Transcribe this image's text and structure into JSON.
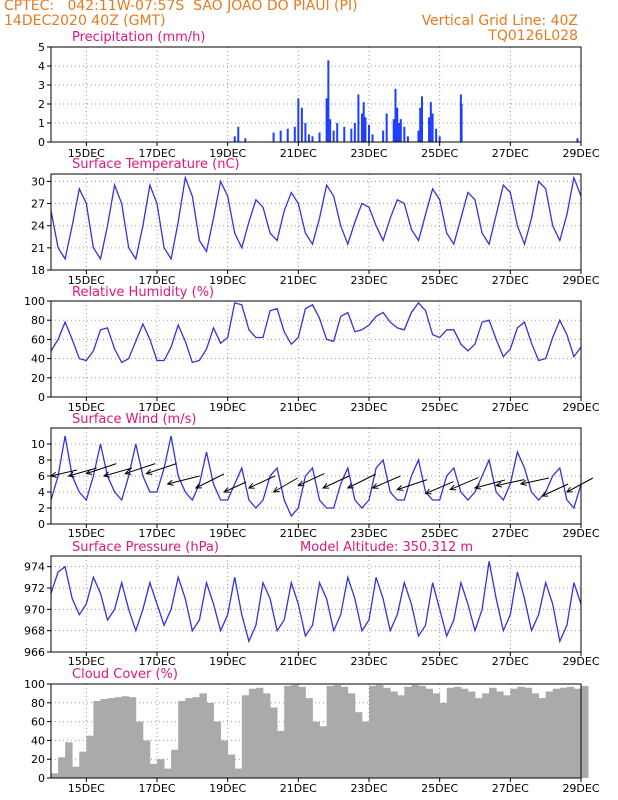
{
  "header": {
    "line1": "CPTEC:   042:11W-07:57S  SAO JOAO DO PIAUI (PI)",
    "line2_left": "14DEC2020 40Z (GMT)",
    "line2_right": "Vertical Grid Line: 40Z",
    "line3_right": "TQ0126L028"
  },
  "colors": {
    "header": "#e87a1e",
    "title": "#e0157f",
    "series": "#3333dd",
    "bars_precip": "#1f3fff",
    "bars_cloud": "#aaaaaa",
    "wind_arrow": "#000000"
  },
  "x_ticks": [
    "15DEC",
    "17DEC",
    "19DEC",
    "21DEC",
    "23DEC",
    "25DEC",
    "27DEC",
    "29DEC"
  ],
  "chart_data": [
    {
      "id": "precip",
      "type": "bar",
      "title": "Precipitation (mm/h)",
      "x_range_days": [
        14.0,
        29.0
      ],
      "ylim": [
        0,
        5
      ],
      "yticks": [
        0,
        1,
        2,
        3,
        4,
        5
      ],
      "x": [
        19.2,
        19.3,
        19.5,
        20.3,
        20.5,
        20.7,
        20.9,
        21.0,
        21.1,
        21.2,
        21.3,
        21.4,
        21.6,
        21.8,
        21.85,
        21.9,
        22.0,
        22.1,
        22.3,
        22.5,
        22.6,
        22.7,
        22.8,
        22.85,
        22.9,
        23.0,
        23.1,
        23.4,
        23.5,
        23.7,
        23.75,
        23.8,
        23.85,
        23.9,
        24.0,
        24.1,
        24.4,
        24.45,
        24.5,
        24.7,
        24.75,
        24.8,
        24.9,
        25.0,
        25.6,
        25.62,
        28.9
      ],
      "values": [
        0.3,
        0.8,
        0.2,
        0.5,
        0.6,
        0.7,
        0.8,
        2.3,
        1.8,
        1.0,
        0.4,
        0.3,
        0.5,
        2.3,
        4.3,
        1.2,
        0.6,
        1.0,
        0.8,
        0.7,
        1.0,
        2.5,
        1.5,
        2.1,
        1.3,
        0.9,
        0.4,
        0.6,
        1.5,
        1.2,
        2.8,
        1.8,
        1.0,
        1.2,
        0.8,
        0.3,
        0.6,
        1.8,
        2.4,
        1.3,
        2.1,
        1.5,
        0.7,
        0.3,
        2.5,
        2.0,
        0.2
      ]
    },
    {
      "id": "temp",
      "type": "line",
      "title": "Surface Temperature (nC)",
      "x_range_days": [
        14.0,
        29.0
      ],
      "ylim": [
        18,
        31
      ],
      "yticks": [
        18,
        21,
        24,
        27,
        30
      ],
      "x": [
        14.0,
        14.2,
        14.4,
        14.6,
        14.8,
        15.0,
        15.2,
        15.4,
        15.6,
        15.8,
        16.0,
        16.2,
        16.4,
        16.6,
        16.8,
        17.0,
        17.2,
        17.4,
        17.6,
        17.8,
        18.0,
        18.2,
        18.4,
        18.6,
        18.8,
        19.0,
        19.2,
        19.4,
        19.6,
        19.8,
        20.0,
        20.2,
        20.4,
        20.6,
        20.8,
        21.0,
        21.2,
        21.4,
        21.6,
        21.8,
        22.0,
        22.2,
        22.4,
        22.6,
        22.8,
        23.0,
        23.2,
        23.4,
        23.6,
        23.8,
        24.0,
        24.2,
        24.4,
        24.6,
        24.8,
        25.0,
        25.2,
        25.4,
        25.6,
        25.8,
        26.0,
        26.2,
        26.4,
        26.6,
        26.8,
        27.0,
        27.2,
        27.4,
        27.6,
        27.8,
        28.0,
        28.2,
        28.4,
        28.6,
        28.8,
        29.0
      ],
      "values": [
        26,
        21,
        19.5,
        24,
        29,
        27,
        21,
        19.5,
        24,
        29.5,
        27,
        21,
        19.5,
        24,
        29.5,
        27,
        21,
        19.5,
        24.5,
        30.5,
        28,
        22,
        20.5,
        25,
        30,
        28,
        23,
        21,
        24.5,
        27.5,
        26.5,
        23,
        22,
        26,
        28.5,
        27,
        23,
        21.5,
        25,
        29.5,
        28,
        24,
        21.5,
        24.5,
        27,
        26.5,
        24,
        22,
        25,
        27.5,
        27,
        23.5,
        22,
        25.5,
        29,
        27.5,
        23,
        21.5,
        25,
        28.5,
        27.5,
        23,
        21.5,
        25.5,
        29.5,
        28.5,
        24,
        21.5,
        25,
        30,
        29,
        24,
        22,
        25.5,
        30.5,
        28
      ]
    },
    {
      "id": "rh",
      "type": "line",
      "title": "Relative Humidity (%)",
      "x_range_days": [
        14.0,
        29.0
      ],
      "ylim": [
        0,
        100
      ],
      "yticks": [
        0,
        20,
        40,
        60,
        80,
        100
      ],
      "x": [
        14.0,
        14.2,
        14.4,
        14.6,
        14.8,
        15.0,
        15.2,
        15.4,
        15.6,
        15.8,
        16.0,
        16.2,
        16.4,
        16.6,
        16.8,
        17.0,
        17.2,
        17.4,
        17.6,
        17.8,
        18.0,
        18.2,
        18.4,
        18.6,
        18.8,
        19.0,
        19.2,
        19.4,
        19.6,
        19.8,
        20.0,
        20.2,
        20.4,
        20.6,
        20.8,
        21.0,
        21.2,
        21.4,
        21.6,
        21.8,
        22.0,
        22.2,
        22.4,
        22.6,
        22.8,
        23.0,
        23.2,
        23.4,
        23.6,
        23.8,
        24.0,
        24.2,
        24.4,
        24.6,
        24.8,
        25.0,
        25.2,
        25.4,
        25.6,
        25.8,
        26.0,
        26.2,
        26.4,
        26.6,
        26.8,
        27.0,
        27.2,
        27.4,
        27.6,
        27.8,
        28.0,
        28.2,
        28.4,
        28.6,
        28.8,
        29.0
      ],
      "values": [
        48,
        60,
        78,
        60,
        40,
        38,
        48,
        70,
        72,
        50,
        36,
        40,
        58,
        76,
        60,
        38,
        38,
        52,
        75,
        58,
        36,
        38,
        50,
        72,
        56,
        62,
        98,
        96,
        70,
        62,
        62,
        90,
        92,
        68,
        55,
        62,
        92,
        96,
        82,
        60,
        58,
        84,
        88,
        68,
        70,
        75,
        84,
        88,
        78,
        72,
        70,
        88,
        98,
        90,
        65,
        62,
        70,
        70,
        55,
        48,
        55,
        78,
        80,
        60,
        42,
        50,
        72,
        78,
        56,
        38,
        40,
        62,
        80,
        65,
        42,
        52
      ]
    },
    {
      "id": "wind",
      "type": "line",
      "title": "Surface Wind (m/s)",
      "x_range_days": [
        14.0,
        29.0
      ],
      "ylim": [
        0,
        12
      ],
      "yticks": [
        0,
        2,
        4,
        6,
        8,
        10
      ],
      "x": [
        14.0,
        14.2,
        14.4,
        14.6,
        14.8,
        15.0,
        15.2,
        15.4,
        15.6,
        15.8,
        16.0,
        16.2,
        16.4,
        16.6,
        16.8,
        17.0,
        17.2,
        17.4,
        17.6,
        17.8,
        18.0,
        18.2,
        18.4,
        18.6,
        18.8,
        19.0,
        19.2,
        19.4,
        19.6,
        19.8,
        20.0,
        20.2,
        20.4,
        20.6,
        20.8,
        21.0,
        21.2,
        21.4,
        21.6,
        21.8,
        22.0,
        22.2,
        22.4,
        22.6,
        22.8,
        23.0,
        23.2,
        23.4,
        23.6,
        23.8,
        24.0,
        24.2,
        24.4,
        24.6,
        24.8,
        25.0,
        25.2,
        25.4,
        25.6,
        25.8,
        26.0,
        26.2,
        26.4,
        26.6,
        26.8,
        27.0,
        27.2,
        27.4,
        27.6,
        27.8,
        28.0,
        28.2,
        28.4,
        28.6,
        28.8,
        29.0
      ],
      "values": [
        3,
        6,
        11,
        6,
        4,
        3,
        6,
        10,
        6,
        4,
        3,
        6,
        10,
        6,
        4,
        4,
        7,
        11,
        6,
        4,
        3,
        5,
        9,
        5,
        3,
        3,
        5,
        7,
        3,
        2,
        3,
        6,
        7,
        3,
        1,
        2,
        6,
        7,
        3,
        2,
        2,
        5,
        7,
        3,
        2,
        3,
        7,
        8,
        4,
        3,
        3,
        6,
        8,
        4,
        3,
        3,
        6,
        7,
        4,
        3,
        4,
        6,
        8,
        4,
        3,
        5,
        9,
        7,
        4,
        3,
        4,
        6,
        7,
        3,
        2,
        5
      ],
      "arrows": [
        {
          "x": 14.0,
          "y": 6.0,
          "dx": 26,
          "dy": -6
        },
        {
          "x": 14.5,
          "y": 6.0,
          "dx": 28,
          "dy": -8
        },
        {
          "x": 15.0,
          "y": 6.3,
          "dx": 30,
          "dy": -10
        },
        {
          "x": 15.5,
          "y": 6.0,
          "dx": 28,
          "dy": -8
        },
        {
          "x": 16.1,
          "y": 6.3,
          "dx": 30,
          "dy": -10
        },
        {
          "x": 16.7,
          "y": 6.3,
          "dx": 30,
          "dy": -10
        },
        {
          "x": 17.3,
          "y": 5.0,
          "dx": 32,
          "dy": -8
        },
        {
          "x": 18.1,
          "y": 4.5,
          "dx": 28,
          "dy": -14
        },
        {
          "x": 18.9,
          "y": 4.0,
          "dx": 22,
          "dy": -10
        },
        {
          "x": 19.6,
          "y": 4.5,
          "dx": 26,
          "dy": -12
        },
        {
          "x": 20.3,
          "y": 4.0,
          "dx": 24,
          "dy": -14
        },
        {
          "x": 21.0,
          "y": 4.8,
          "dx": 26,
          "dy": -12
        },
        {
          "x": 21.7,
          "y": 4.5,
          "dx": 26,
          "dy": -12
        },
        {
          "x": 22.4,
          "y": 4.5,
          "dx": 28,
          "dy": -14
        },
        {
          "x": 23.1,
          "y": 4.5,
          "dx": 28,
          "dy": -12
        },
        {
          "x": 23.8,
          "y": 4.3,
          "dx": 30,
          "dy": -10
        },
        {
          "x": 24.6,
          "y": 3.8,
          "dx": 28,
          "dy": -12
        },
        {
          "x": 25.3,
          "y": 4.3,
          "dx": 28,
          "dy": -12
        },
        {
          "x": 26.0,
          "y": 4.5,
          "dx": 30,
          "dy": -8
        },
        {
          "x": 26.6,
          "y": 4.8,
          "dx": 28,
          "dy": -6
        },
        {
          "x": 27.3,
          "y": 5.0,
          "dx": 28,
          "dy": -6
        },
        {
          "x": 27.9,
          "y": 3.5,
          "dx": 26,
          "dy": -12
        },
        {
          "x": 28.6,
          "y": 4.0,
          "dx": 26,
          "dy": -14
        }
      ]
    },
    {
      "id": "pressure",
      "type": "line",
      "title": "Surface Pressure (hPa)",
      "annotation": "Model Altitude: 350.312 m",
      "x_range_days": [
        14.0,
        29.0
      ],
      "ylim": [
        966,
        975
      ],
      "yticks": [
        966,
        968,
        970,
        972,
        974
      ],
      "x": [
        14.0,
        14.2,
        14.4,
        14.6,
        14.8,
        15.0,
        15.2,
        15.4,
        15.6,
        15.8,
        16.0,
        16.2,
        16.4,
        16.6,
        16.8,
        17.0,
        17.2,
        17.4,
        17.6,
        17.8,
        18.0,
        18.2,
        18.4,
        18.6,
        18.8,
        19.0,
        19.2,
        19.4,
        19.6,
        19.8,
        20.0,
        20.2,
        20.4,
        20.6,
        20.8,
        21.0,
        21.2,
        21.4,
        21.6,
        21.8,
        22.0,
        22.2,
        22.4,
        22.6,
        22.8,
        23.0,
        23.2,
        23.4,
        23.6,
        23.8,
        24.0,
        24.2,
        24.4,
        24.6,
        24.8,
        25.0,
        25.2,
        25.4,
        25.6,
        25.8,
        26.0,
        26.2,
        26.4,
        26.6,
        26.8,
        27.0,
        27.2,
        27.4,
        27.6,
        27.8,
        28.0,
        28.2,
        28.4,
        28.6,
        28.8,
        29.0
      ],
      "values": [
        971.5,
        973.5,
        974,
        971,
        969.5,
        970.5,
        973,
        971.5,
        969,
        970,
        972.5,
        970,
        968,
        970,
        972.5,
        970.5,
        968.5,
        970,
        973,
        971,
        968,
        969,
        972.5,
        970.5,
        968,
        969.5,
        973,
        969.5,
        967,
        968.5,
        972.5,
        971,
        968,
        969,
        972.5,
        970.5,
        967.5,
        968.5,
        972.5,
        971,
        968,
        969.5,
        973,
        971,
        968,
        969,
        973,
        971,
        968,
        969.5,
        972.5,
        970.5,
        967.5,
        968.5,
        972.5,
        970,
        967.5,
        969,
        972.5,
        970.5,
        968,
        970,
        974.5,
        971,
        968,
        969.5,
        973.5,
        971,
        968,
        969.5,
        972.5,
        970.5,
        967,
        968.5,
        972.5,
        970.5
      ]
    },
    {
      "id": "cloud",
      "type": "area",
      "title": "Cloud Cover (%)",
      "x_range_days": [
        14.0,
        29.0
      ],
      "ylim": [
        0,
        100
      ],
      "yticks": [
        0,
        20,
        40,
        60,
        80,
        100
      ],
      "x": [
        14.0,
        14.2,
        14.4,
        14.6,
        14.8,
        15.0,
        15.2,
        15.4,
        15.6,
        15.8,
        16.0,
        16.2,
        16.4,
        16.6,
        16.8,
        17.0,
        17.2,
        17.4,
        17.6,
        17.8,
        18.0,
        18.2,
        18.4,
        18.6,
        18.8,
        19.0,
        19.2,
        19.4,
        19.6,
        19.8,
        20.0,
        20.2,
        20.4,
        20.6,
        20.8,
        21.0,
        21.2,
        21.4,
        21.6,
        21.8,
        22.0,
        22.2,
        22.4,
        22.6,
        22.8,
        23.0,
        23.2,
        23.4,
        23.6,
        23.8,
        24.0,
        24.2,
        24.4,
        24.6,
        24.8,
        25.0,
        25.2,
        25.4,
        25.6,
        25.8,
        26.0,
        26.2,
        26.4,
        26.6,
        26.8,
        27.0,
        27.2,
        27.4,
        27.6,
        27.8,
        28.0,
        28.2,
        28.4,
        28.6,
        28.8,
        29.0
      ],
      "values": [
        5,
        22,
        38,
        12,
        28,
        45,
        82,
        84,
        85,
        86,
        87,
        86,
        60,
        40,
        15,
        20,
        10,
        30,
        82,
        85,
        86,
        90,
        80,
        60,
        40,
        25,
        10,
        88,
        95,
        96,
        90,
        75,
        50,
        98,
        99,
        97,
        85,
        60,
        55,
        98,
        99,
        97,
        90,
        70,
        60,
        98,
        99,
        96,
        92,
        88,
        97,
        99,
        98,
        95,
        90,
        80,
        96,
        97,
        95,
        92,
        85,
        90,
        96,
        92,
        88,
        95,
        97,
        96,
        90,
        85,
        92,
        95,
        96,
        97,
        95,
        98
      ]
    }
  ]
}
